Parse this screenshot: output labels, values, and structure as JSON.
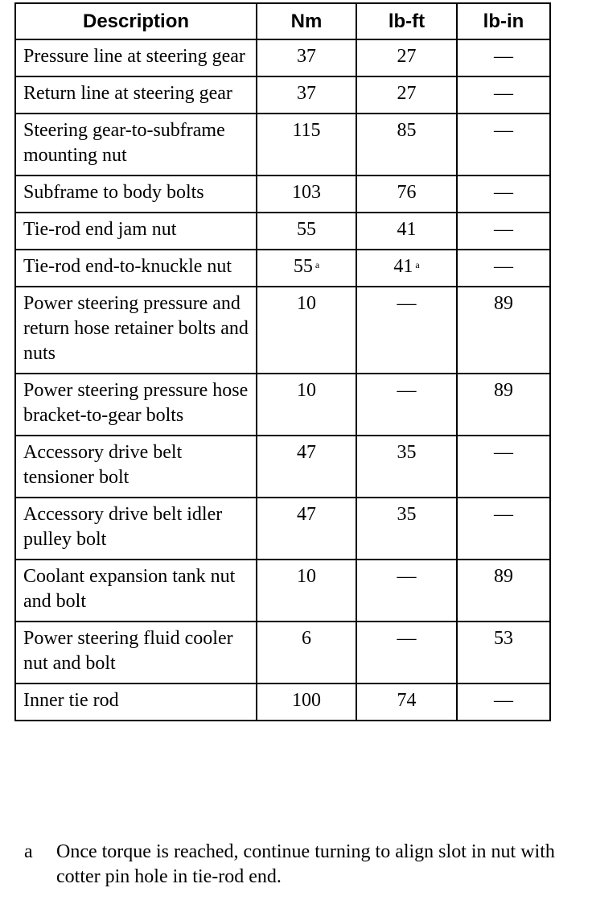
{
  "table": {
    "headers": [
      "Description",
      "Nm",
      "lb-ft",
      "lb-in"
    ],
    "rows": [
      {
        "description": "Pressure line at steering gear",
        "nm": "37",
        "lbft": "27",
        "lbin": "—"
      },
      {
        "description": "Return line at steering gear",
        "nm": "37",
        "lbft": "27",
        "lbin": "—"
      },
      {
        "description": "Steering gear-to-subframe mounting nut",
        "nm": "115",
        "lbft": "85",
        "lbin": "—"
      },
      {
        "description": "Subframe to body bolts",
        "nm": "103",
        "lbft": "76",
        "lbin": "—"
      },
      {
        "description": "Tie-rod end jam nut",
        "nm": "55",
        "lbft": "41",
        "lbin": "—"
      },
      {
        "description": "Tie-rod end-to-knuckle nut",
        "nm": "55",
        "nm_note": "a",
        "lbft": "41",
        "lbft_note": "a",
        "lbin": "—"
      },
      {
        "description": "Power steering pressure and return hose retainer bolts and nuts",
        "nm": "10",
        "lbft": "—",
        "lbin": "89"
      },
      {
        "description": "Power steering pressure hose bracket-to-gear bolts",
        "nm": "10",
        "lbft": "—",
        "lbin": "89"
      },
      {
        "description": "Accessory drive belt tensioner bolt",
        "nm": "47",
        "lbft": "35",
        "lbin": "—"
      },
      {
        "description": "Accessory drive belt idler pulley bolt",
        "nm": "47",
        "lbft": "35",
        "lbin": "—"
      },
      {
        "description": "Coolant expansion tank nut and bolt",
        "nm": "10",
        "lbft": "—",
        "lbin": "89"
      },
      {
        "description": "Power steering fluid cooler nut and bolt",
        "nm": "6",
        "lbft": "—",
        "lbin": "53"
      },
      {
        "description": "Inner tie rod",
        "nm": "100",
        "lbft": "74",
        "lbin": "—"
      }
    ]
  },
  "footnote": {
    "mark": "a",
    "text": "Once torque is reached, continue turning to align slot in nut with cotter pin hole in tie-rod end."
  }
}
